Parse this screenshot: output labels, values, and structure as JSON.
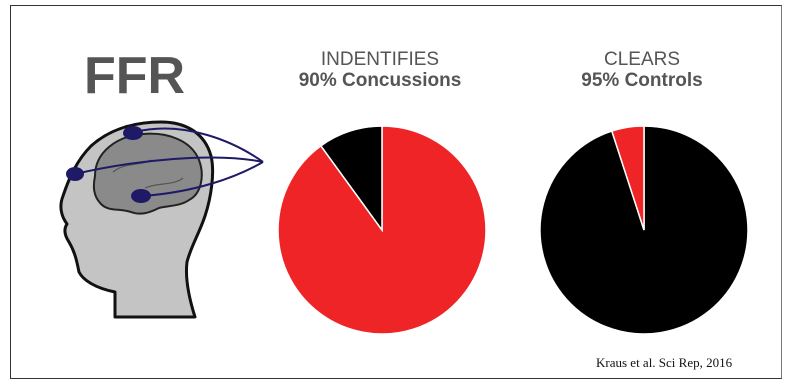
{
  "figure": {
    "label": "FFR",
    "citation": "Kraus et al. Sci Rep, 2016"
  },
  "colors": {
    "positive": "#ee2427",
    "negative": "#000000",
    "head_fill": "#c4c4c4",
    "brain_fill": "#8a8a8a",
    "electrode": "#1e1a66"
  },
  "chart_data": [
    {
      "type": "pie",
      "title_line1": "INDENTIFIES",
      "title_line2": "90% Concussions",
      "slices": [
        {
          "value": 90,
          "color": "#ee2427"
        },
        {
          "value": 10,
          "color": "#000000"
        }
      ]
    },
    {
      "type": "pie",
      "title_line1": "CLEARS",
      "title_line2": "95% Controls",
      "slices": [
        {
          "value": 95,
          "color": "#000000"
        },
        {
          "value": 5,
          "color": "#ee2427"
        }
      ]
    }
  ]
}
